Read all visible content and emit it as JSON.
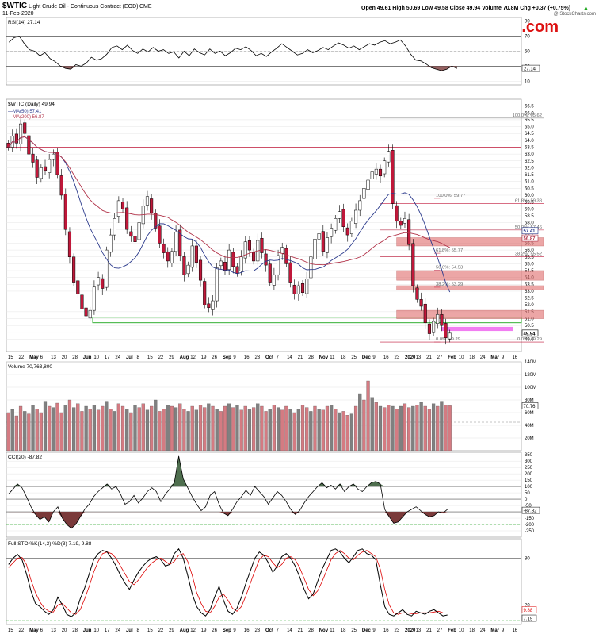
{
  "header": {
    "ticker": "$WTIC",
    "description": "Light Crude Oil - Continuous Contract (EOD)",
    "exchange": "CME",
    "date": "11-Feb-2020",
    "quote": "Open 49.61  High 50.69  Low 49.58  Close 49.94  Volume 70.8M  Chg +0.37 (+0.75%)",
    "quote_arrow": "▲",
    "credit": "@ StockCharts.com",
    "watermark": "SunshineProfits.com"
  },
  "colors": {
    "up": "#ffffff",
    "down": "#c0183a",
    "vol_up": "#808080",
    "vol_down": "#d47b82",
    "ma50": "#2b3a8c",
    "ma200": "#b2344a",
    "resistance": "#c0183a",
    "support": "#1ba61b",
    "fib": "#888888",
    "zone": "#e06c6c",
    "magenta": "#ee66ee",
    "osc_fill_pos": "#4e6e4e",
    "osc_fill_neg": "#7a3a3a"
  },
  "chart_data": [
    {
      "type": "line",
      "title": "RSI(14) 27.14",
      "indicator": "RSI(14)",
      "last_value": 27.14,
      "ylim": [
        5,
        95
      ],
      "y_ticks": [
        10,
        30,
        50,
        70,
        90
      ],
      "y_tick_labels": [
        "10",
        "30",
        "50",
        "70",
        "90"
      ],
      "levels": [
        30,
        50,
        70
      ],
      "values": [
        62,
        68,
        70,
        60,
        52,
        50,
        44,
        48,
        40,
        36,
        30,
        27,
        26,
        32,
        30,
        34,
        42,
        38,
        40,
        46,
        55,
        57,
        52,
        58,
        51,
        47,
        53,
        49,
        55,
        50,
        52,
        47,
        49,
        41,
        50,
        44,
        53,
        48,
        45,
        53,
        47,
        50,
        44,
        48,
        54,
        52,
        56,
        51,
        44,
        47,
        43,
        49,
        54,
        60,
        55,
        50,
        45,
        47,
        52,
        48,
        51,
        55,
        52,
        57,
        61,
        58,
        54,
        57,
        52,
        56,
        60,
        58,
        62,
        64,
        60,
        62,
        65,
        57,
        46,
        38,
        37,
        33,
        28,
        26,
        24,
        26,
        30,
        27
      ]
    },
    {
      "type": "candlestick",
      "title": "$WTIC (Daily) 49.94",
      "ylim": [
        48.6,
        67.0
      ],
      "y_ticks": [
        49.5,
        50.0,
        50.5,
        51.0,
        51.5,
        52.0,
        52.5,
        53.0,
        53.5,
        54.0,
        54.5,
        55.0,
        55.5,
        56.0,
        56.5,
        57.0,
        57.5,
        58.0,
        58.5,
        59.0,
        59.5,
        60.0,
        60.5,
        61.0,
        61.5,
        62.0,
        62.5,
        63.0,
        63.5,
        64.0,
        64.5,
        65.0,
        65.5,
        66.0,
        66.5
      ],
      "y_tick_labels": [
        "49.5",
        "50.0",
        "50.5",
        "51.0",
        "51.5",
        "52.0",
        "52.5",
        "53.0",
        "53.5",
        "54.0",
        "54.5",
        "55.0",
        "55.5",
        "56.0",
        "56.5",
        "57.0",
        "57.5",
        "58.0",
        "58.5",
        "59.0",
        "59.5",
        "60.0",
        "60.5",
        "61.0",
        "61.5",
        "62.0",
        "62.5",
        "63.0",
        "63.5",
        "64.0",
        "64.5",
        "65.0",
        "65.5",
        "66.0",
        "66.5"
      ],
      "legend": [
        {
          "label": "MA(50) 57.41",
          "color": "#2b3a8c"
        },
        {
          "label": "MA(200) 56.87",
          "color": "#b2344a"
        }
      ],
      "price_badges": [
        {
          "value": 57.41,
          "label": "57.41",
          "color": "#2b3a8c"
        },
        {
          "value": 56.87,
          "label": "56.87",
          "color": "#b2344a"
        },
        {
          "value": 49.94,
          "label": "49.94",
          "color": "#000000"
        }
      ],
      "closes": [
        63.5,
        64.3,
        63.8,
        65.2,
        64.5,
        63.0,
        62.4,
        61.3,
        62.0,
        61.8,
        62.6,
        63.0,
        61.5,
        60.0,
        57.5,
        55.5,
        53.6,
        52.8,
        51.7,
        51.2,
        51.6,
        53.3,
        54.0,
        53.2,
        56.0,
        57.1,
        58.3,
        59.6,
        59.0,
        57.5,
        57.0,
        56.6,
        58.0,
        59.2,
        59.9,
        58.7,
        57.6,
        56.5,
        55.8,
        55.2,
        55.9,
        57.3,
        55.6,
        54.2,
        54.9,
        56.3,
        55.1,
        53.8,
        52.0,
        51.8,
        52.3,
        54.7,
        55.2,
        54.5,
        56.0,
        54.8,
        54.3,
        55.5,
        56.6,
        56.0,
        55.2,
        56.7,
        55.8,
        54.9,
        53.6,
        54.2,
        55.6,
        56.2,
        55.0,
        53.6,
        52.8,
        53.4,
        52.9,
        53.9,
        55.5,
        56.8,
        57.2,
        55.9,
        56.9,
        57.6,
        58.3,
        58.8,
        57.7,
        57.1,
        58.1,
        58.9,
        59.6,
        60.5,
        61.1,
        61.7,
        61.9,
        61.4,
        62.5,
        63.2,
        59.4,
        58.1,
        57.8,
        58.3,
        56.4,
        53.4,
        52.4,
        51.9,
        50.7,
        49.9,
        50.8,
        51.3,
        50.5,
        49.6,
        49.94
      ],
      "fib_levels_upper": [
        {
          "label": "100.0%: 65.62",
          "value": 65.62
        },
        {
          "label": "61.8%: 59.38",
          "value": 59.38
        },
        {
          "label": "50.0%: 57.46",
          "value": 57.46
        },
        {
          "label": "38.2%: 55.52",
          "value": 55.52
        },
        {
          "label": "0.0%: 49.29",
          "value": 49.29
        }
      ],
      "fib_levels_lower": [
        {
          "label": "100.0%: 59.77",
          "value": 59.77
        },
        {
          "label": "61.8%: 55.77",
          "value": 55.77
        },
        {
          "label": "50.0%: 54.53",
          "value": 54.53
        },
        {
          "label": "38.2%: 53.29",
          "value": 53.29
        },
        {
          "label": "0.0%: 49.29",
          "value": 49.29
        }
      ],
      "resistance": 63.5,
      "support_zone": [
        50.7,
        51.1
      ],
      "gap_zones": [
        [
          56.3,
          56.9
        ],
        [
          53.8,
          54.5
        ],
        [
          53.1,
          53.4
        ],
        [
          51.0,
          51.6
        ]
      ],
      "magenta_zone": [
        50.1,
        50.4
      ]
    },
    {
      "type": "bar",
      "title": "Volume 70,763,800",
      "last_value": 70763800,
      "ylim": [
        0,
        140
      ],
      "y_ticks": [
        20,
        40,
        60,
        80,
        100,
        120,
        140
      ],
      "y_tick_labels": [
        "20M",
        "40M",
        "60M",
        "80M",
        "100M",
        "120M",
        "140M"
      ],
      "badge": "70.76",
      "values": [
        60,
        65,
        55,
        70,
        62,
        58,
        72,
        66,
        60,
        78,
        70,
        68,
        75,
        60,
        72,
        80,
        68,
        74,
        62,
        70,
        66,
        72,
        64,
        70,
        78,
        66,
        62,
        74,
        70,
        66,
        60,
        72,
        68,
        74,
        64,
        70,
        80,
        62,
        66,
        72,
        70,
        68,
        74,
        66,
        62,
        70,
        64,
        72,
        68,
        74,
        70,
        66,
        62,
        70,
        74,
        68,
        72,
        64,
        70,
        66,
        68,
        74,
        70,
        62,
        66,
        72,
        68,
        64,
        70,
        66,
        60,
        66,
        72,
        68,
        62,
        70,
        66,
        64,
        70,
        72,
        66,
        60,
        62,
        56,
        58,
        70,
        90,
        80,
        110,
        84,
        76,
        70,
        68,
        72,
        70,
        66,
        70,
        74,
        68,
        70,
        72,
        76,
        70,
        66,
        74,
        70,
        78,
        72,
        70.8
      ]
    },
    {
      "type": "line",
      "title": "CCI(20) -87.82",
      "last_value": -87.82,
      "ylim": [
        -300,
        370
      ],
      "y_ticks": [
        -250,
        -200,
        -150,
        -100,
        -50,
        0,
        50,
        100,
        150,
        200,
        250,
        300,
        350
      ],
      "y_tick_labels": [
        "-250",
        "-200",
        "-150",
        "-100",
        "-50",
        "0",
        "50",
        "100",
        "150",
        "200",
        "250",
        "300",
        "350"
      ],
      "badge": "-87.82",
      "levels": [
        100,
        0,
        -100
      ],
      "dashed_levels": [
        -200
      ],
      "values": [
        40,
        80,
        120,
        90,
        20,
        -60,
        -120,
        -160,
        -140,
        -180,
        -100,
        -60,
        -150,
        -200,
        -230,
        -200,
        -140,
        -80,
        -40,
        20,
        60,
        90,
        120,
        80,
        100,
        40,
        -40,
        -20,
        30,
        -30,
        10,
        60,
        90,
        60,
        -20,
        40,
        80,
        130,
        340,
        160,
        90,
        20,
        -40,
        -90,
        -60,
        30,
        60,
        -40,
        -110,
        -130,
        -80,
        -20,
        20,
        70,
        30,
        100,
        60,
        20,
        -40,
        10,
        60,
        30,
        -20,
        -80,
        -120,
        -90,
        -30,
        20,
        60,
        100,
        130,
        90,
        110,
        80,
        120,
        60,
        100,
        120,
        80,
        60,
        100,
        130,
        140,
        120,
        -80,
        -140,
        -190,
        -180,
        -140,
        -100,
        -80,
        -60,
        -90,
        -120,
        -140,
        -130,
        -100,
        -110,
        -80
      ]
    },
    {
      "type": "line",
      "title": "Full STO %K(14,3) %D(3) 7.19, 9.88",
      "k_last": 7.19,
      "d_last": 9.88,
      "ylim": [
        -5,
        105
      ],
      "y_ticks": [
        20,
        80
      ],
      "y_tick_labels": [
        "20",
        "80"
      ],
      "badges": [
        {
          "label": "9.88"
        },
        {
          "label": "7.19"
        }
      ],
      "levels": [
        80,
        20
      ],
      "dashed_levels": [
        0
      ],
      "k_values": [
        72,
        80,
        85,
        78,
        60,
        38,
        22,
        18,
        12,
        8,
        14,
        30,
        20,
        8,
        5,
        10,
        28,
        42,
        60,
        78,
        86,
        90,
        88,
        80,
        70,
        58,
        48,
        40,
        52,
        62,
        70,
        76,
        80,
        82,
        78,
        70,
        72,
        86,
        92,
        80,
        58,
        34,
        18,
        10,
        6,
        14,
        30,
        44,
        26,
        12,
        8,
        16,
        30,
        48,
        64,
        80,
        88,
        84,
        74,
        62,
        70,
        82,
        86,
        80,
        70,
        56,
        40,
        28,
        34,
        50,
        66,
        78,
        90,
        92,
        88,
        80,
        74,
        82,
        90,
        92,
        86,
        84,
        78,
        46,
        18,
        8,
        6,
        10,
        14,
        8,
        6,
        12,
        10,
        8,
        12,
        14,
        10,
        6,
        7.19
      ],
      "d_values": [
        68,
        74,
        80,
        81,
        72,
        52,
        36,
        24,
        16,
        12,
        11,
        20,
        22,
        16,
        10,
        8,
        14,
        28,
        44,
        62,
        76,
        86,
        88,
        86,
        80,
        70,
        60,
        50,
        46,
        52,
        60,
        68,
        74,
        78,
        80,
        76,
        72,
        76,
        84,
        86,
        76,
        58,
        36,
        22,
        12,
        10,
        18,
        30,
        34,
        26,
        16,
        12,
        18,
        32,
        48,
        64,
        78,
        84,
        82,
        74,
        68,
        72,
        80,
        82,
        78,
        68,
        54,
        40,
        32,
        38,
        50,
        64,
        78,
        86,
        90,
        86,
        80,
        78,
        84,
        88,
        90,
        86,
        82,
        66,
        40,
        20,
        10,
        8,
        10,
        10,
        9,
        9,
        10,
        10,
        10,
        11,
        12,
        10,
        9.88
      ]
    }
  ],
  "x_axis_labels": [
    "15",
    "22",
    "May",
    "6",
    "13",
    "20",
    "28",
    "Jun",
    "10",
    "17",
    "24",
    "Jul",
    "8",
    "15",
    "22",
    "29",
    "Aug",
    "12",
    "19",
    "26",
    "Sep",
    "9",
    "16",
    "23",
    "Oct",
    "7",
    "14",
    "21",
    "28",
    "Nov",
    "11",
    "18",
    "25",
    "Dec",
    "9",
    "16",
    "23",
    "2020",
    "13",
    "21",
    "27",
    "Feb",
    "10",
    "18",
    "24",
    "Mar",
    "9",
    "16"
  ]
}
